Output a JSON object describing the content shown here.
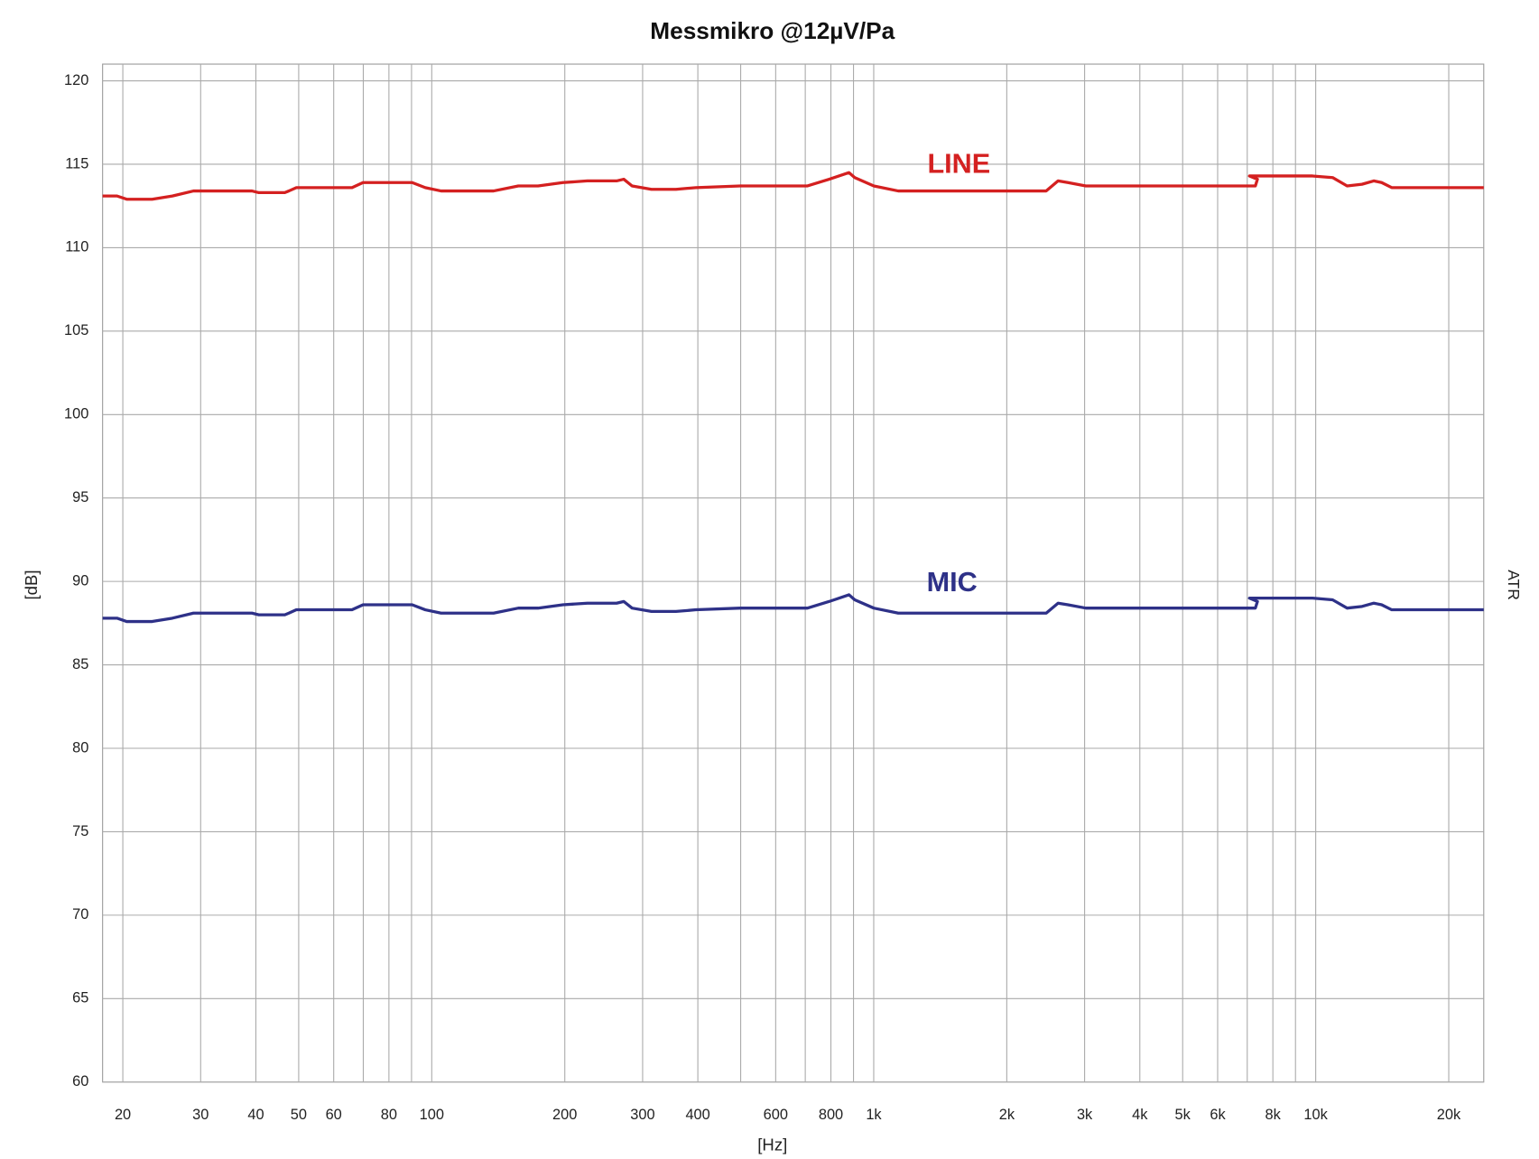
{
  "chart_data": {
    "type": "line",
    "title": "Messmikro @12µV/Pa",
    "x_label": "[Hz]",
    "y_label": "[dB]",
    "right_label": "ATR",
    "xscale": "log",
    "xlim": [
      18,
      24000
    ],
    "ylim": [
      60,
      121
    ],
    "xticks": [
      20,
      30,
      40,
      50,
      60,
      80,
      100,
      200,
      300,
      400,
      600,
      800,
      {
        "value": 1000,
        "label": "1k"
      },
      {
        "value": 2000,
        "label": "2k"
      },
      {
        "value": 3000,
        "label": "3k"
      },
      {
        "value": 4000,
        "label": "4k"
      },
      {
        "value": 5000,
        "label": "5k"
      },
      {
        "value": 6000,
        "label": "6k"
      },
      {
        "value": 8000,
        "label": "8k"
      },
      {
        "value": 10000,
        "label": "10k"
      },
      {
        "value": 20000,
        "label": "20k"
      }
    ],
    "x_minor_ticks": [
      70,
      90,
      500,
      700,
      900,
      7000,
      9000
    ],
    "yticks": [
      60,
      65,
      70,
      75,
      80,
      85,
      90,
      95,
      100,
      105,
      110,
      115,
      120
    ],
    "grid": true,
    "x": [
      18,
      19.4,
      20.4,
      23.3,
      25.9,
      28.9,
      39.2,
      40.6,
      46.5,
      47.5,
      49.4,
      66,
      69.9,
      90.3,
      96.7,
      105,
      138,
      157,
      174,
      198,
      225,
      262,
      272,
      284,
      314,
      357,
      396,
      499,
      708,
      793,
      879,
      906,
      1000,
      1136,
      2456,
      2612,
      2750,
      3018,
      3260,
      3294,
      7303,
      7380,
      7080,
      9840,
      10920,
      11780,
      12730,
      13530,
      14100,
      14860,
      24000
    ],
    "series": [
      {
        "name": "LINE",
        "color": "#d42020",
        "values": [
          113.1,
          113.1,
          112.9,
          112.9,
          113.1,
          113.4,
          113.4,
          113.3,
          113.3,
          113.4,
          113.6,
          113.6,
          113.9,
          113.9,
          113.6,
          113.4,
          113.4,
          113.7,
          113.7,
          113.9,
          114.0,
          114.0,
          114.1,
          113.7,
          113.5,
          113.5,
          113.6,
          113.7,
          113.7,
          114.1,
          114.5,
          114.2,
          113.7,
          113.4,
          113.4,
          114.0,
          113.9,
          113.7,
          113.7,
          113.7,
          113.7,
          114.1,
          114.3,
          114.3,
          114.2,
          113.7,
          113.8,
          114.0,
          113.9,
          113.6,
          113.6
        ]
      },
      {
        "name": "MIC",
        "color": "#2e3188",
        "values": [
          87.8,
          87.8,
          87.6,
          87.6,
          87.8,
          88.1,
          88.1,
          88.0,
          88.0,
          88.1,
          88.3,
          88.3,
          88.6,
          88.6,
          88.3,
          88.1,
          88.1,
          88.4,
          88.4,
          88.6,
          88.7,
          88.7,
          88.8,
          88.4,
          88.2,
          88.2,
          88.3,
          88.4,
          88.4,
          88.8,
          89.2,
          88.9,
          88.4,
          88.1,
          88.1,
          88.7,
          88.6,
          88.4,
          88.4,
          88.4,
          88.4,
          88.8,
          89.0,
          89.0,
          88.9,
          88.4,
          88.5,
          88.7,
          88.6,
          88.3,
          88.3
        ]
      }
    ]
  }
}
